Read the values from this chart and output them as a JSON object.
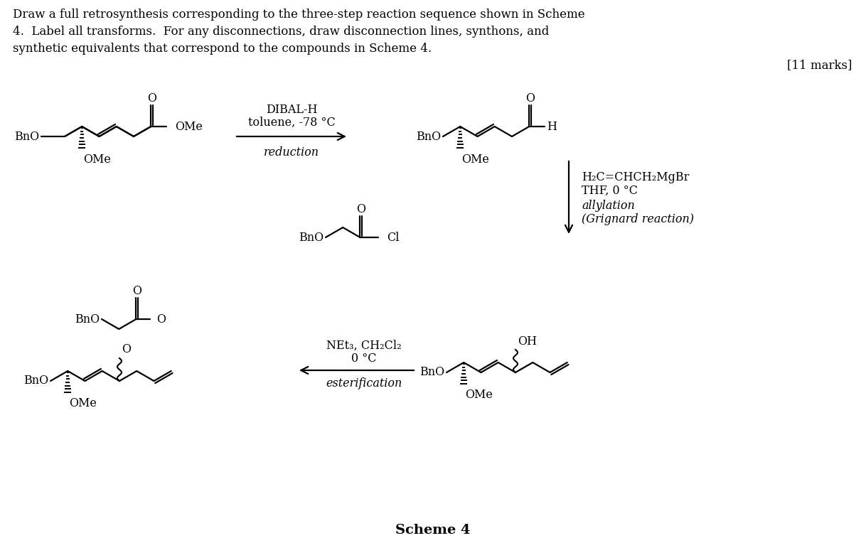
{
  "bg": "#ffffff",
  "title": "Draw a full retrosynthesis corresponding to the three-step reaction sequence shown in Scheme\n4.  Label all transforms.  For any disconnections, draw disconnection lines, synthons, and\nsynthetic equivalents that correspond to the compounds in Scheme 4.",
  "marks": "[11 marks]",
  "r1_l1": "DIBAL-H",
  "r1_l2": "toluene, -78 °C",
  "r1_type": "reduction",
  "r2_l1": "H₂C=CHCH₂MgBr",
  "r2_l2": "THF, 0 °C",
  "r2_type": "allylation",
  "r2_sub": "(Grignard reaction)",
  "r3_l1": "NEt₃, CH₂Cl₂",
  "r3_l2": "0 °C",
  "r3_type": "esterification",
  "scheme": "Scheme 4",
  "BnO": "BnO",
  "OMe": "OMe",
  "OH": "OH",
  "O": "O",
  "H": "H",
  "Cl": "Cl"
}
